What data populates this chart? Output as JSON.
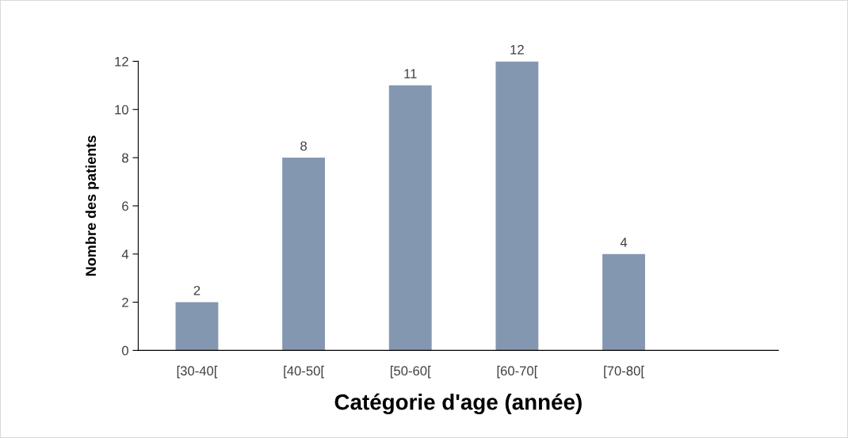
{
  "chart_data": {
    "type": "bar",
    "xlabel": "Catégorie d'age (année)",
    "ylabel": "Nombre des patients",
    "categories": [
      "[30-40[",
      "[40-50[",
      "[50-60[",
      "[60-70[",
      "[70-80["
    ],
    "values": [
      2,
      8,
      11,
      12,
      4
    ],
    "color": "#8497b0",
    "ylim": [
      0,
      12
    ],
    "yticks": [
      0,
      2,
      4,
      6,
      8,
      10,
      12
    ],
    "grid": false,
    "data_labels": true
  }
}
